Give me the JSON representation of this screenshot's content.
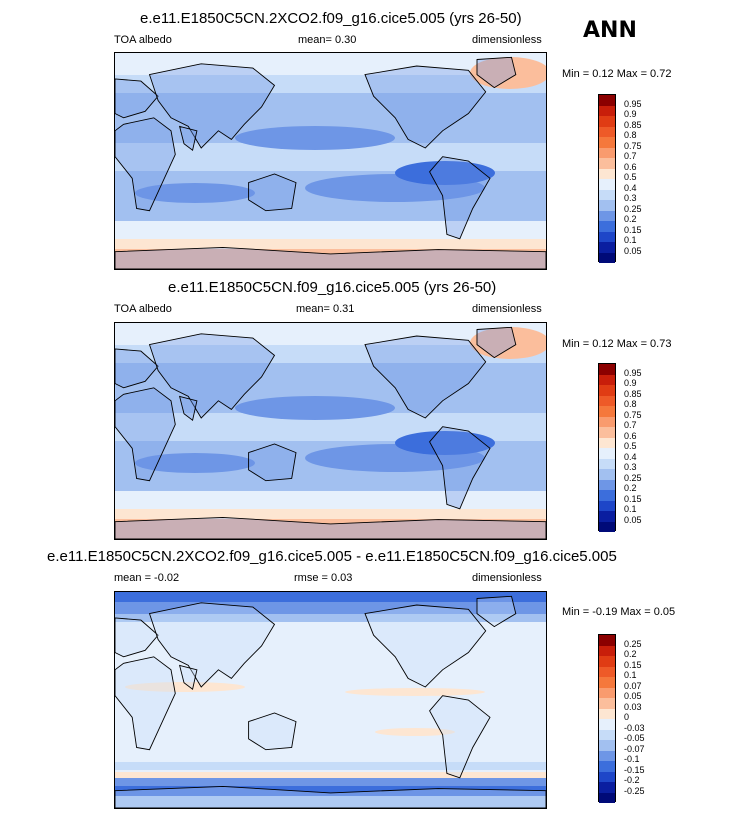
{
  "season": "ANN",
  "panels": [
    {
      "title": "e.e11.E1850C5CN.2XCO2.f09_g16.cice5.005 (yrs 26-50)",
      "left_label": "TOA albedo",
      "center_label": "mean=   0.30",
      "right_label": "dimensionless",
      "minmax": "Min =   0.12 Max =   0.72",
      "colorbar": {
        "labels": [
          "0.95",
          "0.9",
          "0.85",
          "0.8",
          "0.75",
          "0.7",
          "0.6",
          "0.5",
          "0.4",
          "0.3",
          "0.25",
          "0.2",
          "0.15",
          "0.1",
          "0.05"
        ],
        "colors": [
          "#8b0000",
          "#c81e0a",
          "#e03c14",
          "#ee5a28",
          "#f5783c",
          "#f99b6e",
          "#fbbe9c",
          "#fde6d2",
          "#e6f0fc",
          "#c6dcf8",
          "#a2c0f0",
          "#6e96e6",
          "#3c6edc",
          "#1e46c8",
          "#0a1ea0",
          "#000a78"
        ]
      },
      "map_style": "full"
    },
    {
      "title": "e.e11.E1850C5CN.f09_g16.cice5.005 (yrs 26-50)",
      "left_label": "TOA albedo",
      "center_label": "mean=   0.31",
      "right_label": "dimensionless",
      "minmax": "Min =   0.12 Max =   0.73",
      "colorbar": {
        "labels": [
          "0.95",
          "0.9",
          "0.85",
          "0.8",
          "0.75",
          "0.7",
          "0.6",
          "0.5",
          "0.4",
          "0.3",
          "0.25",
          "0.2",
          "0.15",
          "0.1",
          "0.05"
        ],
        "colors": [
          "#8b0000",
          "#c81e0a",
          "#e03c14",
          "#ee5a28",
          "#f5783c",
          "#f99b6e",
          "#fbbe9c",
          "#fde6d2",
          "#e6f0fc",
          "#c6dcf8",
          "#a2c0f0",
          "#6e96e6",
          "#3c6edc",
          "#1e46c8",
          "#0a1ea0",
          "#000a78"
        ]
      },
      "map_style": "full"
    },
    {
      "title": "e.e11.E1850C5CN.2XCO2.f09_g16.cice5.005 - e.e11.E1850C5CN.f09_g16.cice5.005",
      "left_label": "mean =  -0.02",
      "center_label": "rmse =   0.03",
      "right_label": "dimensionless",
      "minmax": "Min =  -0.19 Max =   0.05",
      "colorbar": {
        "labels": [
          "0.25",
          "0.2",
          "0.15",
          "0.1",
          "0.07",
          "0.05",
          "0.03",
          "0",
          "-0.03",
          "-0.05",
          "-0.07",
          "-0.1",
          "-0.15",
          "-0.2",
          "-0.25"
        ],
        "colors": [
          "#8b0000",
          "#c81e0a",
          "#e03c14",
          "#ee5a28",
          "#f5783c",
          "#f99b6e",
          "#fbbe9c",
          "#fde6d2",
          "#e6f0fc",
          "#c6dcf8",
          "#a2c0f0",
          "#6e96e6",
          "#3c6edc",
          "#1e46c8",
          "#0a1ea0",
          "#000a78"
        ]
      },
      "map_style": "diff"
    }
  ]
}
